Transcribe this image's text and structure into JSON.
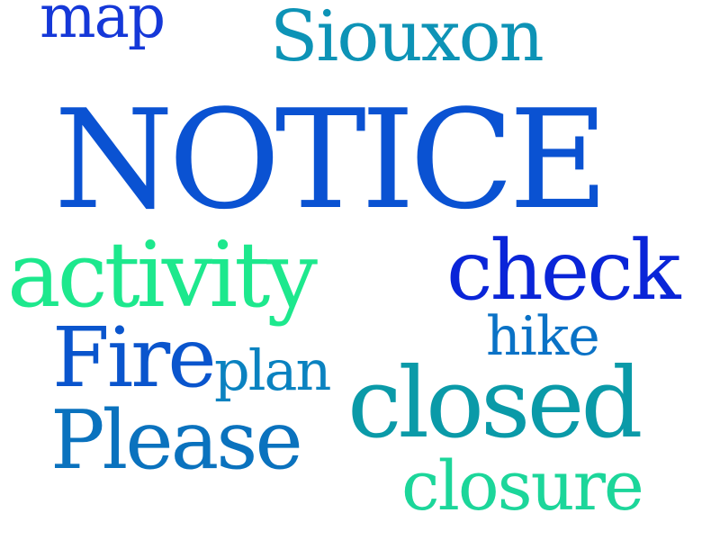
{
  "words": {
    "notice": {
      "text": "NOTICE",
      "color": "#0a52d2"
    },
    "map": {
      "text": "map",
      "color": "#1538d8"
    },
    "siouxon": {
      "text": "Siouxon",
      "color": "#0d93b6"
    },
    "activity": {
      "text": "activity",
      "color": "#1de88d"
    },
    "check": {
      "text": "check",
      "color": "#0a25d8"
    },
    "hike": {
      "text": "hike",
      "color": "#0a72c6"
    },
    "fire": {
      "text": "Fire",
      "color": "#0a55cd"
    },
    "plan": {
      "text": "plan",
      "color": "#0a82c0"
    },
    "closed": {
      "text": "closed",
      "color": "#0a9aa8"
    },
    "please": {
      "text": "Please",
      "color": "#0a72be"
    },
    "closure": {
      "text": "closure",
      "color": "#1cd69a"
    }
  }
}
